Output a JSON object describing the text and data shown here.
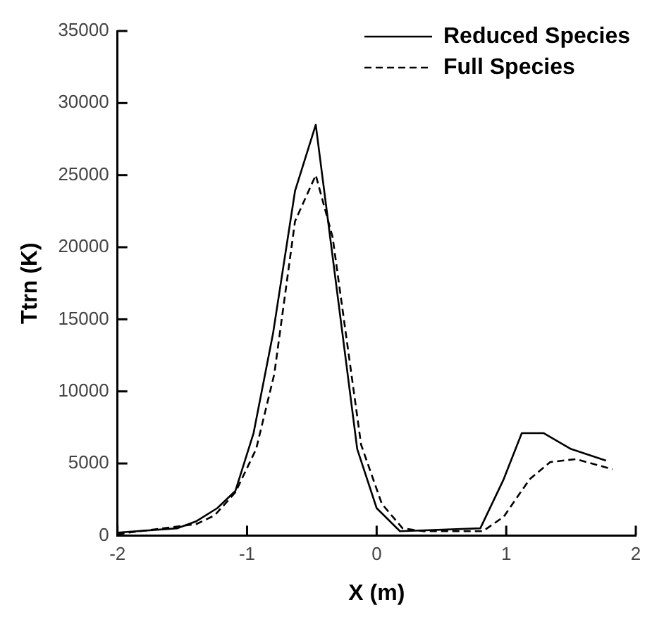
{
  "chart_data": {
    "type": "line",
    "xlabel": "X (m)",
    "ylabel": "Ttrn (K)",
    "xlim": [
      -2,
      2
    ],
    "ylim": [
      0,
      35000
    ],
    "xticks": [
      -2,
      -1,
      0,
      1,
      2
    ],
    "yticks": [
      0,
      5000,
      10000,
      15000,
      20000,
      25000,
      30000,
      35000
    ],
    "grid": false,
    "legend": "top right",
    "marker": "none",
    "series": [
      {
        "name": "Reduced Species",
        "color": "#000000",
        "line_style": "solid",
        "x": [
          -2,
          -1.54,
          -1.39,
          -1.23,
          -1.09,
          -0.95,
          -0.8,
          -0.63,
          -0.47,
          -0.15,
          0,
          0.18,
          0.8,
          0.98,
          1.12,
          1.29,
          1.5,
          1.77
        ],
        "values": [
          200,
          500,
          1000,
          1900,
          3100,
          7100,
          14000,
          23900,
          28500,
          6000,
          1900,
          300,
          500,
          3900,
          7100,
          7100,
          6000,
          5200
        ]
      },
      {
        "name": "Full Species",
        "color": "#000000",
        "line_style": "dashed",
        "x": [
          -2,
          -1.39,
          -1.25,
          -1.09,
          -0.93,
          -0.79,
          -0.63,
          -0.47,
          -0.34,
          -0.12,
          0.04,
          0.2,
          0.36,
          0.82,
          0.98,
          1.18,
          1.34,
          1.54,
          1.82
        ],
        "values": [
          100,
          800,
          1400,
          3000,
          6000,
          11200,
          21800,
          25000,
          20700,
          6300,
          2200,
          500,
          300,
          300,
          1300,
          3900,
          5100,
          5300,
          4600
        ]
      }
    ]
  }
}
